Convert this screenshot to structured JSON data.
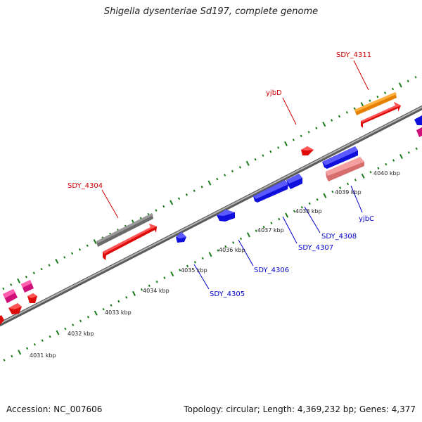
{
  "title": "Shigella dysenteriae Sd197, complete genome",
  "footer": {
    "accession": "Accession: NC_007606",
    "summary": "Topology: circular; Length: 4,369,232 bp; Genes: 4,377"
  },
  "colors": {
    "backbone": "#8c8c8c",
    "tick": "#1a7a1a",
    "label_forward": "#cc0000",
    "label_reverse": "#0000cc",
    "gene_red": "#ee1111",
    "gene_blue": "#1a1aee",
    "gene_gray": "#707070",
    "gene_orange": "#f08c00",
    "gene_pink": "#ee8888",
    "gene_magenta": "#e0208c"
  },
  "scale_labels": [
    "4031 kbp",
    "4032 kbp",
    "4033 kbp",
    "4034 kbp",
    "4035 kbp",
    "4036 kbp",
    "4037 kbp",
    "4038 kbp",
    "4039 kbp",
    "4040 kbp"
  ],
  "gene_labels": [
    {
      "id": "sdy4311",
      "text": "SDY_4311",
      "strand": "forward"
    },
    {
      "id": "yjbd",
      "text": "yjbD",
      "strand": "forward"
    },
    {
      "id": "sdy4304",
      "text": "SDY_4304",
      "strand": "forward"
    },
    {
      "id": "sdy4305",
      "text": "SDY_4305",
      "strand": "reverse"
    },
    {
      "id": "sdy4306",
      "text": "SDY_4306",
      "strand": "reverse"
    },
    {
      "id": "sdy4307",
      "text": "SDY_4307",
      "strand": "reverse"
    },
    {
      "id": "sdy4308",
      "text": "SDY_4308",
      "strand": "reverse"
    },
    {
      "id": "yjbc",
      "text": "yjbC",
      "strand": "reverse"
    }
  ]
}
